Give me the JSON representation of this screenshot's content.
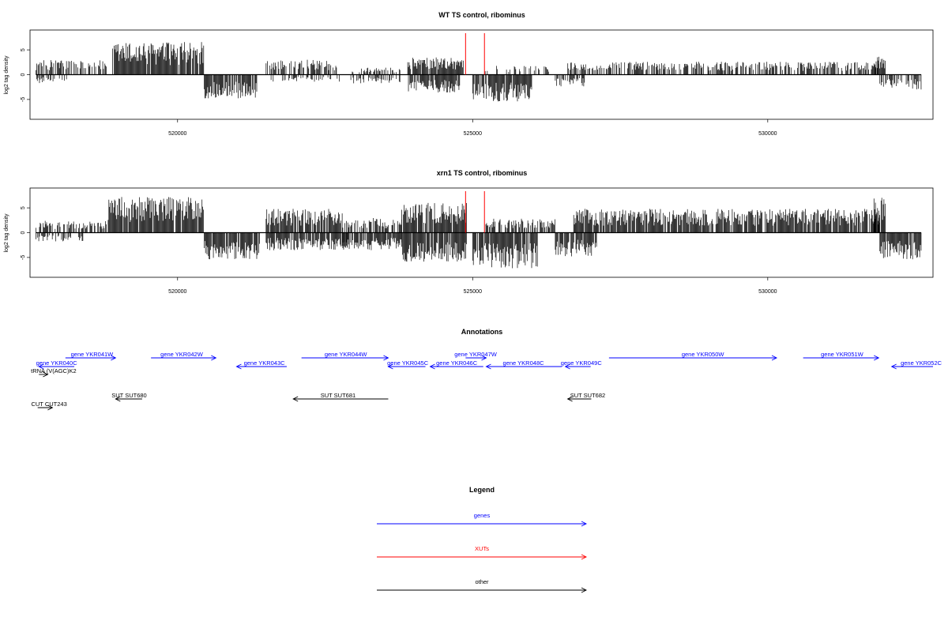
{
  "chart_data": [
    {
      "type": "bar",
      "title": "WT TS control, ribominus",
      "ylabel": "log2 tag density",
      "xlim": [
        517500,
        532800
      ],
      "ylim": [
        -9,
        9
      ],
      "x_ticks": [
        "520000",
        "525000",
        "530000"
      ],
      "y_ticks": [
        "5",
        "0",
        "-5"
      ],
      "x_tick_values": [
        520000,
        525000,
        530000
      ],
      "y_tick_values": [
        5,
        0,
        -5
      ],
      "xut_markers": [
        524880,
        525200
      ],
      "signal_regions": [
        {
          "start": 517600,
          "end": 518800,
          "direction": "up",
          "level": 2.5
        },
        {
          "start": 517600,
          "end": 518200,
          "direction": "down",
          "level": -1.5
        },
        {
          "start": 518900,
          "end": 520450,
          "direction": "up",
          "level": 5.5
        },
        {
          "start": 520450,
          "end": 521350,
          "direction": "down",
          "level": -4
        },
        {
          "start": 521500,
          "end": 522700,
          "direction": "up",
          "level": 2.5
        },
        {
          "start": 521500,
          "end": 522800,
          "direction": "down",
          "level": -1.2
        },
        {
          "start": 522900,
          "end": 523800,
          "direction": "up",
          "level": 1.2
        },
        {
          "start": 522900,
          "end": 523800,
          "direction": "down",
          "level": -1.5
        },
        {
          "start": 523900,
          "end": 524850,
          "direction": "up",
          "level": 3
        },
        {
          "start": 523900,
          "end": 524800,
          "direction": "down",
          "level": -3
        },
        {
          "start": 525000,
          "end": 526000,
          "direction": "down",
          "level": -4.5
        },
        {
          "start": 525200,
          "end": 526300,
          "direction": "up",
          "level": 1.5
        },
        {
          "start": 526400,
          "end": 526900,
          "direction": "down",
          "level": -2
        },
        {
          "start": 526600,
          "end": 531900,
          "direction": "up",
          "level": 2.2
        },
        {
          "start": 531800,
          "end": 532000,
          "direction": "up",
          "level": 3.5
        },
        {
          "start": 531900,
          "end": 532600,
          "direction": "down",
          "level": -2.5
        }
      ]
    },
    {
      "type": "bar",
      "title": "xrn1 TS control, ribominus",
      "ylabel": "log2 tag density",
      "xlim": [
        517500,
        532800
      ],
      "ylim": [
        -9,
        9
      ],
      "x_ticks": [
        "520000",
        "525000",
        "530000"
      ],
      "y_ticks": [
        "5",
        "0",
        "-5"
      ],
      "x_tick_values": [
        520000,
        525000,
        530000
      ],
      "y_tick_values": [
        5,
        0,
        -5
      ],
      "xut_markers": [
        524880,
        525200
      ],
      "signal_regions": [
        {
          "start": 517600,
          "end": 518800,
          "direction": "up",
          "level": 2
        },
        {
          "start": 517600,
          "end": 518400,
          "direction": "down",
          "level": -1.5
        },
        {
          "start": 518800,
          "end": 520450,
          "direction": "up",
          "level": 6
        },
        {
          "start": 520450,
          "end": 521400,
          "direction": "down",
          "level": -4.5
        },
        {
          "start": 521500,
          "end": 522800,
          "direction": "up",
          "level": 4
        },
        {
          "start": 521500,
          "end": 522900,
          "direction": "down",
          "level": -3
        },
        {
          "start": 522800,
          "end": 523800,
          "direction": "up",
          "level": 2.5
        },
        {
          "start": 522800,
          "end": 523800,
          "direction": "down",
          "level": -3
        },
        {
          "start": 523800,
          "end": 524900,
          "direction": "up",
          "level": 5
        },
        {
          "start": 523800,
          "end": 524900,
          "direction": "down",
          "level": -5
        },
        {
          "start": 525000,
          "end": 526100,
          "direction": "down",
          "level": -6
        },
        {
          "start": 525200,
          "end": 526400,
          "direction": "up",
          "level": 2.5
        },
        {
          "start": 526400,
          "end": 527100,
          "direction": "down",
          "level": -4
        },
        {
          "start": 526700,
          "end": 531900,
          "direction": "up",
          "level": 4
        },
        {
          "start": 531800,
          "end": 532000,
          "direction": "up",
          "level": 6
        },
        {
          "start": 531900,
          "end": 532600,
          "direction": "down",
          "level": -4.5
        }
      ]
    }
  ],
  "annotations": {
    "title": "Annotations",
    "features": [
      {
        "label": "gene YKR041W",
        "color": "#0000ff",
        "start": 518100,
        "end": 518950,
        "label_x": 518550,
        "strand": "+",
        "row": 0
      },
      {
        "label": "gene YKR040C",
        "color": "#0000ff",
        "start": 517650,
        "end": 518250,
        "label_x": 517950,
        "strand": "-",
        "row": 1
      },
      {
        "label": "tRNA (V(AGC)K2",
        "color": "#000000",
        "start": 517650,
        "end": 517800,
        "label_x": 517900,
        "strand": "+",
        "row": 2
      },
      {
        "label": "gene YKR042W",
        "color": "#0000ff",
        "start": 519550,
        "end": 520650,
        "label_x": 520070,
        "strand": "+",
        "row": 0
      },
      {
        "label": "gene YKR043C",
        "color": "#0000ff",
        "start": 521000,
        "end": 521850,
        "label_x": 521470,
        "strand": "-",
        "row": 1
      },
      {
        "label": "gene YKR044W",
        "color": "#0000ff",
        "start": 522100,
        "end": 523570,
        "label_x": 522850,
        "strand": "+",
        "row": 0
      },
      {
        "label": "gene YKR045C",
        "color": "#0000ff",
        "start": 523570,
        "end": 524200,
        "label_x": 523900,
        "strand": "-",
        "row": 1
      },
      {
        "label": "gene YKR046C",
        "color": "#0000ff",
        "start": 524280,
        "end": 525180,
        "label_x": 524730,
        "strand": "-",
        "row": 1
      },
      {
        "label": "gene YKR047W",
        "color": "#0000ff",
        "start": 524880,
        "end": 525230,
        "label_x": 525050,
        "strand": "+",
        "row": 0
      },
      {
        "label": "gene YKR048C",
        "color": "#0000ff",
        "start": 525230,
        "end": 526510,
        "label_x": 525860,
        "strand": "-",
        "row": 1
      },
      {
        "label": "gene YKR049C",
        "color": "#0000ff",
        "start": 526570,
        "end": 527000,
        "label_x": 526840,
        "strand": "-",
        "row": 1
      },
      {
        "label": "gene YKR050W",
        "color": "#0000ff",
        "start": 527310,
        "end": 530150,
        "label_x": 528900,
        "strand": "+",
        "row": 0
      },
      {
        "label": "gene YKR051W",
        "color": "#0000ff",
        "start": 530600,
        "end": 531880,
        "label_x": 531260,
        "strand": "+",
        "row": 0
      },
      {
        "label": "gene YKR052C",
        "color": "#0000ff",
        "start": 532100,
        "end": 532800,
        "label_x": 532600,
        "strand": "-",
        "row": 1
      },
      {
        "label": "SUT SUT680",
        "color": "#000000",
        "start": 518950,
        "end": 519400,
        "label_x": 519180,
        "strand": "-",
        "row": 3
      },
      {
        "label": "SUT SUT681",
        "color": "#000000",
        "start": 521960,
        "end": 523570,
        "label_x": 522720,
        "strand": "-",
        "row": 3
      },
      {
        "label": "SUT SUT682",
        "color": "#000000",
        "start": 526610,
        "end": 527010,
        "label_x": 526950,
        "strand": "-",
        "row": 3
      },
      {
        "label": "CUT CUT243",
        "color": "#000000",
        "start": 517630,
        "end": 517880,
        "label_x": 517520,
        "strand": "+",
        "row": 4
      }
    ]
  },
  "legend": {
    "title": "Legend",
    "items": [
      {
        "label": "genes",
        "color": "#0000ff"
      },
      {
        "label": "XUTs",
        "color": "#ff0000"
      },
      {
        "label": "other",
        "color": "#000000"
      }
    ]
  }
}
